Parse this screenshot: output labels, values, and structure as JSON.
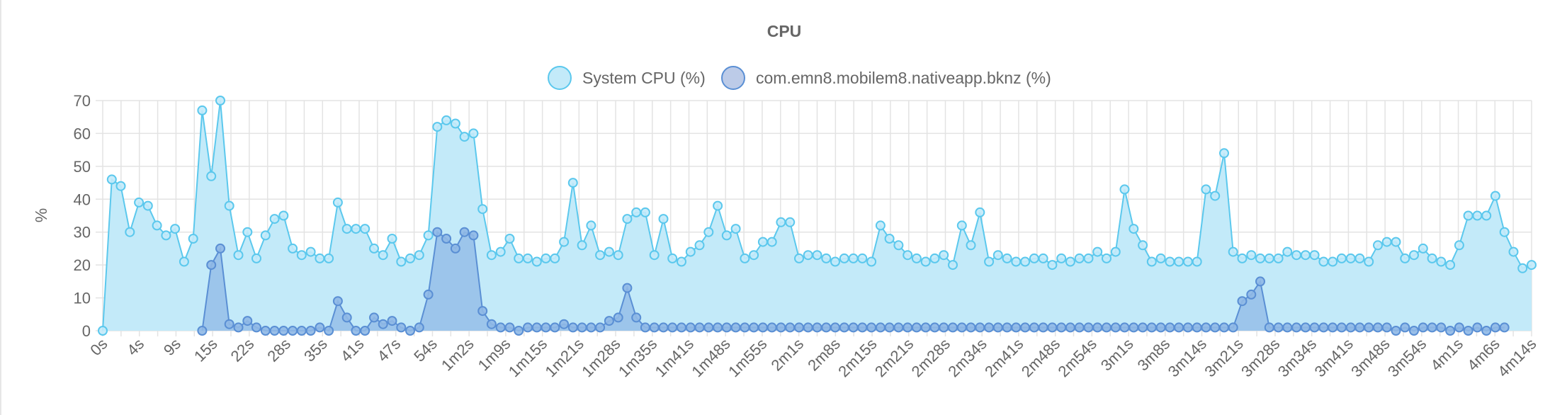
{
  "chart_data": {
    "type": "line",
    "title": "CPU",
    "ylabel": "%",
    "xlabel": "",
    "ylim": [
      0,
      70
    ],
    "yticks": [
      0,
      10,
      20,
      30,
      40,
      50,
      60,
      70
    ],
    "grid": true,
    "legend_position": "top-center",
    "x_tick_labels": [
      "0s",
      "4s",
      "9s",
      "15s",
      "22s",
      "28s",
      "35s",
      "41s",
      "47s",
      "54s",
      "1m2s",
      "1m9s",
      "1m15s",
      "1m21s",
      "1m28s",
      "1m35s",
      "1m41s",
      "1m48s",
      "1m55s",
      "2m1s",
      "2m8s",
      "2m15s",
      "2m21s",
      "2m28s",
      "2m34s",
      "2m41s",
      "2m48s",
      "2m54s",
      "3m1s",
      "3m8s",
      "3m14s",
      "3m21s",
      "3m28s",
      "3m34s",
      "3m41s",
      "3m48s",
      "3m54s",
      "4m1s",
      "4m6s",
      "4m14s"
    ],
    "series": [
      {
        "name": "System CPU (%)",
        "color": "#5bc8ed",
        "fill": "#c3eaf9",
        "values": [
          0,
          46,
          44,
          30,
          39,
          38,
          32,
          29,
          31,
          21,
          28,
          67,
          47,
          70,
          38,
          23,
          30,
          22,
          29,
          34,
          35,
          25,
          23,
          24,
          22,
          22,
          39,
          31,
          31,
          31,
          25,
          23,
          28,
          21,
          22,
          23,
          29,
          62,
          64,
          63,
          59,
          60,
          37,
          23,
          24,
          28,
          22,
          22,
          21,
          22,
          22,
          27,
          45,
          26,
          32,
          23,
          24,
          23,
          34,
          36,
          36,
          23,
          34,
          22,
          21,
          24,
          26,
          30,
          38,
          29,
          31,
          22,
          23,
          27,
          27,
          33,
          33,
          22,
          23,
          23,
          22,
          21,
          22,
          22,
          22,
          21,
          32,
          28,
          26,
          23,
          22,
          21,
          22,
          23,
          20,
          32,
          26,
          36,
          21,
          23,
          22,
          21,
          21,
          22,
          22,
          20,
          22,
          21,
          22,
          22,
          24,
          22,
          24,
          43,
          31,
          26,
          21,
          22,
          21,
          21,
          21,
          21,
          43,
          41,
          54,
          24,
          22,
          23,
          22,
          22,
          22,
          24,
          23,
          23,
          23,
          21,
          21,
          22,
          22,
          22,
          21,
          26,
          27,
          27,
          22,
          23,
          25,
          22,
          21,
          20,
          26,
          35,
          35,
          35,
          41,
          30,
          24,
          19,
          20
        ]
      },
      {
        "name": "com.emn8.mobilem8.nativeapp.bknz (%)",
        "color": "#5a8fd4",
        "fill": "#8fb8e6",
        "start_index": 11,
        "values": [
          0,
          20,
          25,
          2,
          1,
          3,
          1,
          0,
          0,
          0,
          0,
          0,
          0,
          1,
          0,
          9,
          4,
          0,
          0,
          4,
          2,
          3,
          1,
          0,
          1,
          11,
          30,
          28,
          25,
          30,
          29,
          6,
          2,
          1,
          1,
          0,
          1,
          1,
          1,
          1,
          2,
          1,
          1,
          1,
          1,
          3,
          4,
          13,
          4,
          1,
          1,
          1,
          1,
          1,
          1,
          1,
          1,
          1,
          1,
          1,
          1,
          1,
          1,
          1,
          1,
          1,
          1,
          1,
          1,
          1,
          1,
          1,
          1,
          1,
          1,
          1,
          1,
          1,
          1,
          1,
          1,
          1,
          1,
          1,
          1,
          1,
          1,
          1,
          1,
          1,
          1,
          1,
          1,
          1,
          1,
          1,
          1,
          1,
          1,
          1,
          1,
          1,
          1,
          1,
          1,
          1,
          1,
          1,
          1,
          1,
          1,
          1,
          1,
          1,
          1,
          9,
          11,
          15,
          1,
          1,
          1,
          1,
          1,
          1,
          1,
          1,
          1,
          1,
          1,
          1,
          1,
          1,
          0,
          1,
          0,
          1,
          1,
          1,
          0,
          1,
          0,
          1,
          0,
          1,
          1
        ]
      }
    ]
  }
}
